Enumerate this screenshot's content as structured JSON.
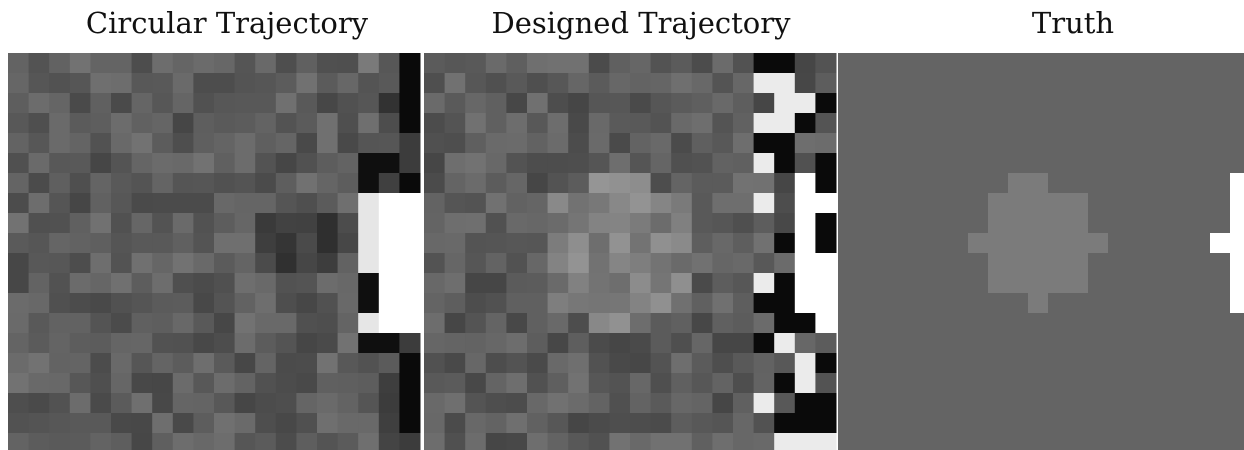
{
  "panels": [
    {
      "title": "Circular Trajectory"
    },
    {
      "title": "Designed Trajectory"
    },
    {
      "title": "Truth"
    }
  ]
}
